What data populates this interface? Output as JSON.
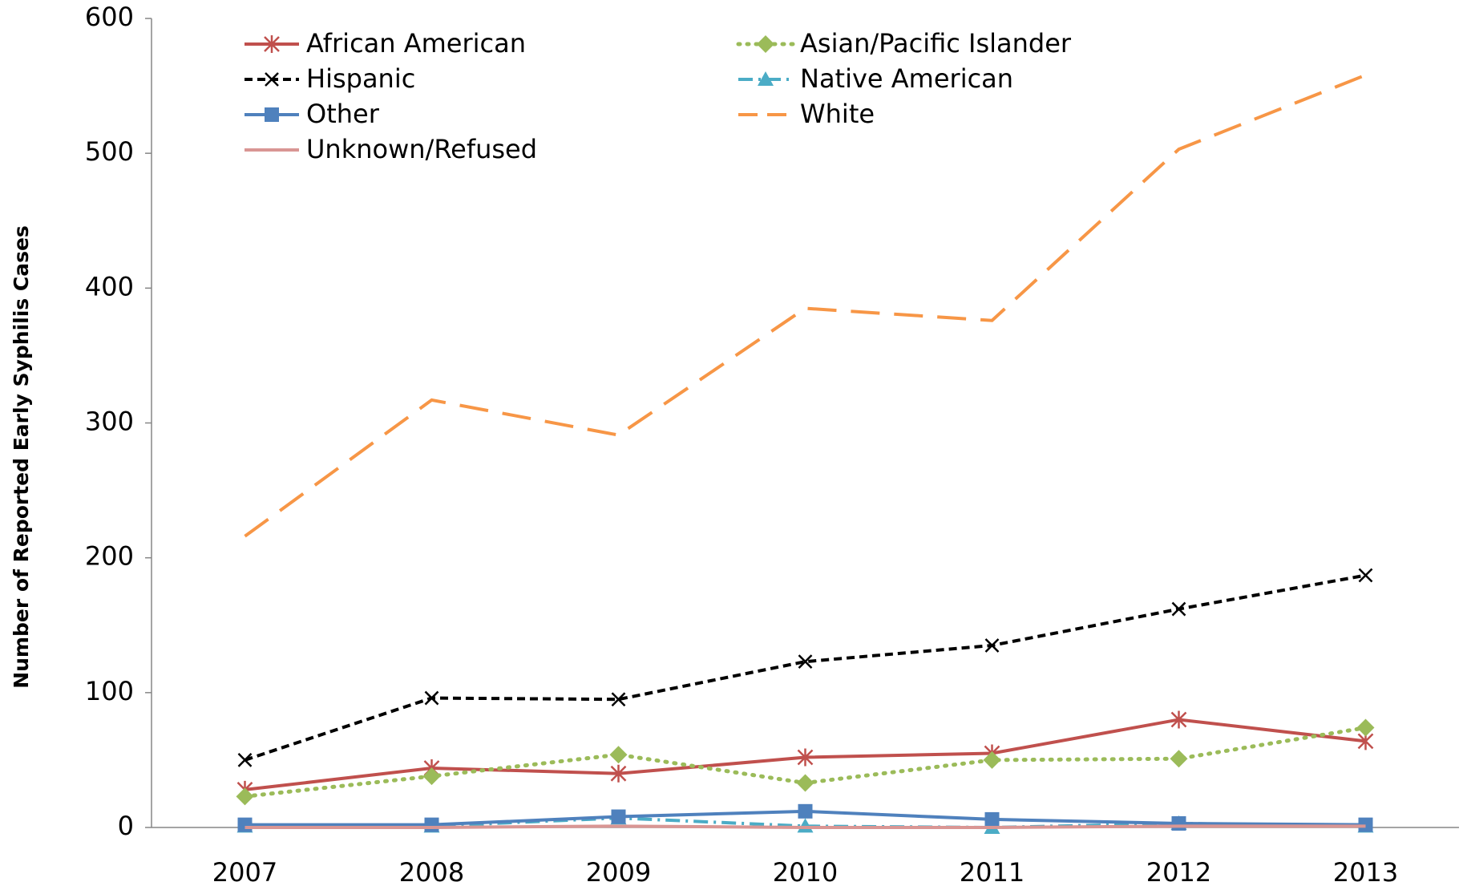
{
  "chart_data": {
    "type": "line",
    "y_label": "Number of Reported Early Syphilis Cases",
    "categories": [
      "2007",
      "2008",
      "2009",
      "2010",
      "2011",
      "2012",
      "2013"
    ],
    "ylim": [
      0,
      600
    ],
    "yticks": [
      0,
      100,
      200,
      300,
      400,
      500,
      600
    ],
    "series": [
      {
        "name": "African American",
        "color": "#c0504d",
        "marker": "asterisk",
        "line_style": "solid",
        "values": [
          28,
          44,
          40,
          52,
          55,
          80,
          64
        ]
      },
      {
        "name": "Asian/Pacific Islander",
        "color": "#9bbb59",
        "marker": "diamond",
        "line_style": "dotted",
        "values": [
          23,
          38,
          54,
          33,
          50,
          51,
          74
        ]
      },
      {
        "name": "Hispanic",
        "color": "#000000",
        "marker": "x",
        "line_style": "dashed",
        "values": [
          50,
          96,
          95,
          123,
          135,
          162,
          187
        ]
      },
      {
        "name": "Native American",
        "color": "#4bacc6",
        "marker": "triangle",
        "line_style": "dashdot",
        "values": [
          1,
          1,
          7,
          1,
          0,
          3,
          1
        ]
      },
      {
        "name": "Other",
        "color": "#4f81bd",
        "marker": "square",
        "line_style": "solid",
        "values": [
          2,
          2,
          8,
          12,
          6,
          3,
          2
        ]
      },
      {
        "name": "White",
        "color": "#f79646",
        "marker": "none",
        "line_style": "longdash",
        "values": [
          216,
          317,
          291,
          385,
          376,
          503,
          558
        ]
      },
      {
        "name": "Unknown/Refused",
        "color": "#d99694",
        "marker": "none",
        "line_style": "solid",
        "values": [
          0,
          0,
          1,
          0,
          0,
          1,
          1
        ]
      }
    ]
  }
}
